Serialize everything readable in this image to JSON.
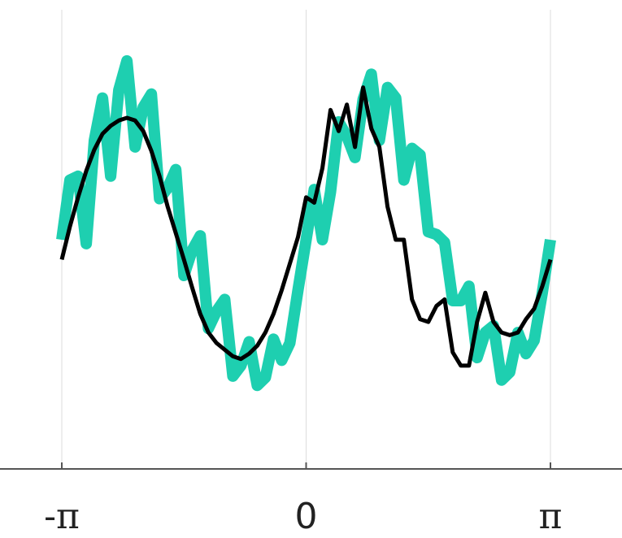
{
  "chart_data": {
    "type": "line",
    "x_ticks": [
      {
        "value": -3.14159,
        "label": "-π"
      },
      {
        "value": 0,
        "label": "0"
      },
      {
        "value": 3.14159,
        "label": "π"
      }
    ],
    "xlim": [
      -3.14159,
      3.14159
    ],
    "ylim": [
      -1.9,
      1.9
    ],
    "grid": "vertical",
    "colors": {
      "teal": "#1ecfb0",
      "black": "#000000",
      "grid": "#dddddd",
      "axis": "#555555"
    },
    "series": [
      {
        "color": "#1ecfb0",
        "x": [
          -3.142,
          -3.037,
          -2.932,
          -2.827,
          -2.723,
          -2.618,
          -2.513,
          -2.409,
          -2.304,
          -2.199,
          -2.094,
          -1.99,
          -1.885,
          -1.78,
          -1.676,
          -1.571,
          -1.466,
          -1.361,
          -1.257,
          -1.152,
          -1.047,
          -0.942,
          -0.838,
          -0.733,
          -0.628,
          -0.524,
          -0.419,
          -0.314,
          -0.209,
          -0.105,
          0.0,
          0.105,
          0.209,
          0.314,
          0.419,
          0.524,
          0.628,
          0.733,
          0.838,
          0.942,
          1.047,
          1.152,
          1.257,
          1.361,
          1.466,
          1.571,
          1.676,
          1.78,
          1.885,
          1.99,
          2.094,
          2.199,
          2.304,
          2.409,
          2.513,
          2.618,
          2.723,
          2.827,
          2.932,
          3.037,
          3.142
        ],
        "y": [
          0.0,
          0.45,
          0.48,
          -0.03,
          0.75,
          1.07,
          0.48,
          1.13,
          1.35,
          0.7,
          1.0,
          1.1,
          0.31,
          0.39,
          0.53,
          -0.27,
          -0.08,
          0.03,
          -0.67,
          -0.54,
          -0.45,
          -1.03,
          -0.95,
          -0.77,
          -1.1,
          -1.04,
          -0.75,
          -0.91,
          -0.78,
          -0.38,
          0.0,
          0.38,
          0.0,
          0.36,
          0.89,
          0.78,
          0.62,
          1.06,
          1.25,
          0.75,
          1.15,
          1.07,
          0.45,
          0.69,
          0.64,
          0.06,
          0.04,
          -0.02,
          -0.46,
          -0.46,
          -0.35,
          -0.89,
          -0.7,
          -0.65,
          -1.06,
          -1.0,
          -0.7,
          -0.86,
          -0.76,
          -0.4,
          0.0
        ]
      },
      {
        "color": "#000000",
        "x": [
          -3.142,
          -3.037,
          -2.932,
          -2.827,
          -2.723,
          -2.618,
          -2.513,
          -2.409,
          -2.304,
          -2.199,
          -2.094,
          -1.99,
          -1.885,
          -1.78,
          -1.676,
          -1.571,
          -1.466,
          -1.361,
          -1.257,
          -1.152,
          -1.047,
          -0.942,
          -0.838,
          -0.733,
          -0.628,
          -0.524,
          -0.419,
          -0.314,
          -0.209,
          -0.105,
          0.0,
          0.105,
          0.209,
          0.314,
          0.419,
          0.524,
          0.628,
          0.733,
          0.838,
          0.942,
          1.047,
          1.152,
          1.257,
          1.361,
          1.466,
          1.571,
          1.676,
          1.78,
          1.885,
          1.99,
          2.094,
          2.199,
          2.304,
          2.409,
          2.513,
          2.618,
          2.723,
          2.827,
          2.932,
          3.037,
          3.142
        ],
        "y": [
          -0.15,
          0.1,
          0.32,
          0.52,
          0.68,
          0.8,
          0.86,
          0.9,
          0.92,
          0.9,
          0.82,
          0.67,
          0.48,
          0.25,
          0.05,
          -0.15,
          -0.36,
          -0.56,
          -0.7,
          -0.78,
          -0.83,
          -0.88,
          -0.9,
          -0.86,
          -0.8,
          -0.7,
          -0.56,
          -0.38,
          -0.18,
          0.02,
          0.32,
          0.28,
          0.54,
          0.98,
          0.82,
          1.02,
          0.7,
          1.15,
          0.84,
          0.7,
          0.25,
          0.0,
          0.0,
          -0.45,
          -0.6,
          -0.62,
          -0.5,
          -0.45,
          -0.85,
          -0.95,
          -0.95,
          -0.62,
          -0.4,
          -0.62,
          -0.7,
          -0.72,
          -0.7,
          -0.6,
          -0.52,
          -0.35,
          -0.15
        ]
      }
    ]
  }
}
